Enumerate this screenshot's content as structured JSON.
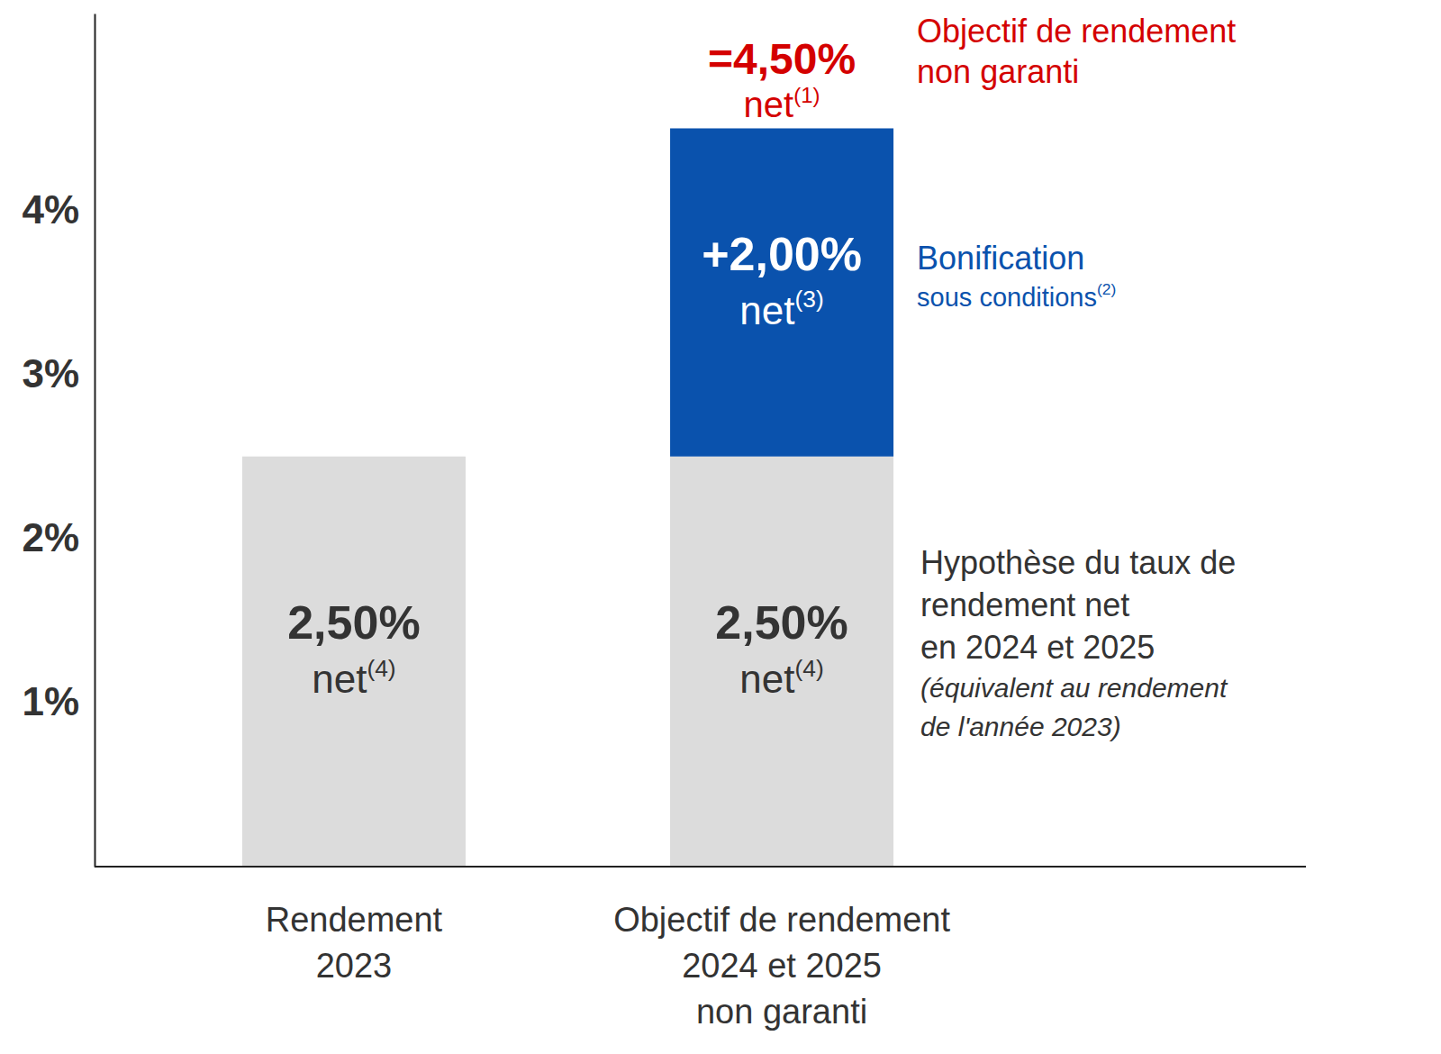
{
  "chart_data": {
    "type": "bar",
    "stacked": true,
    "data_labels": true,
    "grid": false,
    "categories": [
      "Rendement\n2023",
      "Objectif de rendement\n2024 et 2025\nnon garanti"
    ],
    "ylim": [
      0,
      5.2
    ],
    "yticks": [
      {
        "value": 1,
        "label": "1%"
      },
      {
        "value": 2,
        "label": "2%"
      },
      {
        "value": 3,
        "label": "3%"
      },
      {
        "value": 4,
        "label": "4%"
      }
    ],
    "series": [
      {
        "color": "#dcdcdc",
        "values": [
          2.5,
          2.5
        ],
        "value_labels": [
          "2,50%",
          "2,50%"
        ],
        "sub_labels": [
          {
            "text": "net",
            "note": "(4)"
          },
          {
            "text": "net",
            "note": "(4)"
          }
        ],
        "description": [
          {
            "text": "Hypothèse du taux de"
          },
          {
            "text": "rendement net"
          },
          {
            "text": "en 2024 et 2025"
          },
          {
            "text": "(équivalent au rendement",
            "italic": true
          },
          {
            "text": "de l'année 2023)",
            "italic": true
          }
        ]
      },
      {
        "color": "#0a52ad",
        "values": [
          null,
          2.0
        ],
        "value_labels": [
          null,
          "+2,00%"
        ],
        "sub_labels": [
          null,
          {
            "text": "net",
            "note": "(3)"
          }
        ],
        "description": [
          {
            "text": "Bonification",
            "emphasis": true
          },
          {
            "text": "sous conditions",
            "note": "(2)"
          }
        ]
      }
    ],
    "total": {
      "value": 4.5,
      "category": 1,
      "label": "=4,50%",
      "sub_label": {
        "text": "net",
        "note": "(1)"
      },
      "color": "#d40000",
      "description": [
        "Objectif de rendement",
        "non garanti"
      ]
    }
  }
}
